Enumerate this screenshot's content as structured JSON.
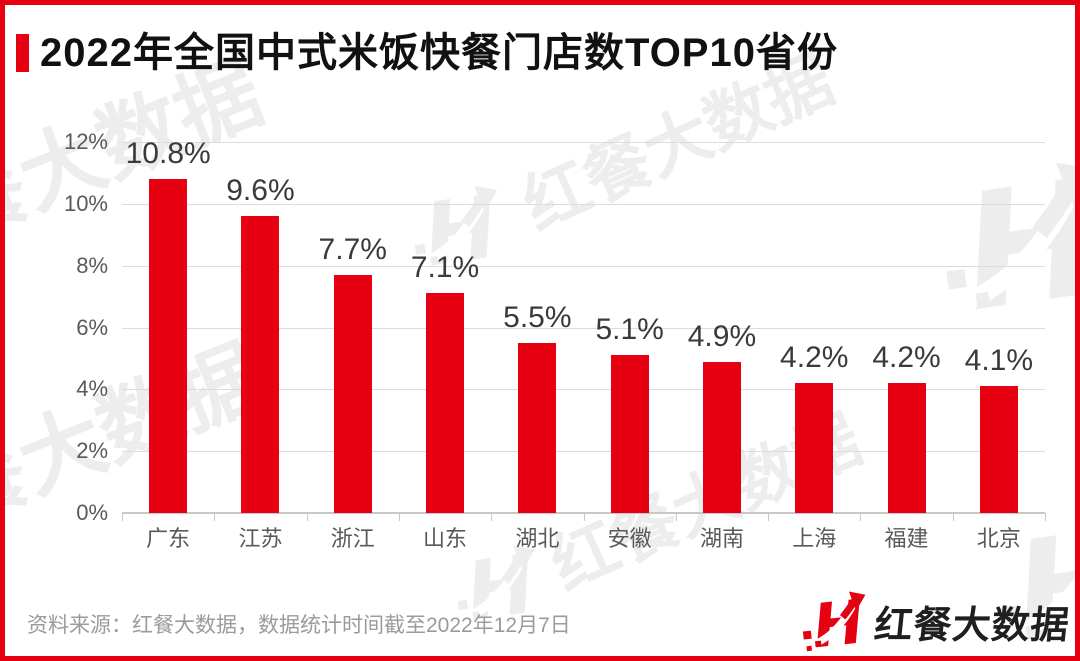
{
  "title": {
    "text": "2022年全国中式米饭快餐门店数TOP10省份"
  },
  "chart_data": {
    "type": "bar",
    "title": "2022年全国中式米饭快餐门店数TOP10省份",
    "categories": [
      "广东",
      "江苏",
      "浙江",
      "山东",
      "湖北",
      "安徽",
      "湖南",
      "上海",
      "福建",
      "北京"
    ],
    "values": [
      10.8,
      9.6,
      7.7,
      7.1,
      5.5,
      5.1,
      4.9,
      4.2,
      4.2,
      4.1
    ],
    "value_labels": [
      "10.8%",
      "9.6%",
      "7.7%",
      "7.1%",
      "5.5%",
      "5.1%",
      "4.9%",
      "4.2%",
      "4.2%",
      "4.1%"
    ],
    "xlabel": "",
    "ylabel": "",
    "ylim": [
      0,
      12
    ],
    "y_ticks": [
      {
        "value": 12,
        "label": "12%"
      },
      {
        "value": 10,
        "label": "10%"
      },
      {
        "value": 8,
        "label": "8%"
      },
      {
        "value": 6,
        "label": "6%"
      },
      {
        "value": 4,
        "label": "4%"
      },
      {
        "value": 2,
        "label": "2%"
      },
      {
        "value": 0,
        "label": "0%"
      }
    ],
    "grid": true,
    "legend": "none",
    "bar_color": "#e60012"
  },
  "footer": {
    "source_text": "资料来源：红餐大数据，数据统计时间截至2022年12月7日"
  },
  "brand": {
    "name": "红餐大数据"
  },
  "watermark": {
    "text": "红餐大数据"
  },
  "colors": {
    "accent_red": "#e60012",
    "grid": "#dcdcdc",
    "axis": "#c7c7c7",
    "value_label": "#3a3a3a",
    "tick_label": "#595959",
    "source_text": "#9b9b9b",
    "watermark": "#ededed",
    "title_text": "#111111"
  }
}
